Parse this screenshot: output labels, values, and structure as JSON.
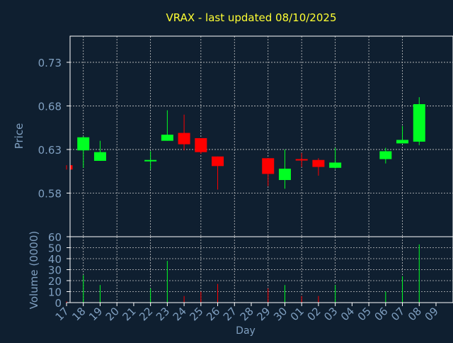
{
  "colors": {
    "background": "#0f1f30",
    "title": "#ffff33",
    "axis_text": "#7f9fc0",
    "up": "#00ff22",
    "down": "#ff0000",
    "grid": "#c8c8c8",
    "frame": "#ffffff"
  },
  "chart_data": [
    {
      "type": "candlestick",
      "title": "VRAX - last updated 08/10/2025",
      "ylabel": "Price",
      "xlabel": "Day",
      "yticks": [
        0.58,
        0.63,
        0.68,
        0.73
      ],
      "ytick_labels": [
        "0.58",
        "0.63",
        "0.68",
        "0.73"
      ],
      "ylim": [
        0.53,
        0.76
      ],
      "grid": true,
      "x_tick_labels": [
        "17",
        "18",
        "19",
        "20",
        "21",
        "22",
        "23",
        "24",
        "25",
        "26",
        "27",
        "28",
        "29",
        "30",
        "01",
        "02",
        "03",
        "04",
        "05",
        "06",
        "07",
        "08",
        "09"
      ],
      "candles": [
        {
          "day": "17",
          "open": 0.612,
          "close": 0.607,
          "high": 0.612,
          "low": 0.607
        },
        {
          "day": "18",
          "open": 0.629,
          "close": 0.644,
          "high": 0.645,
          "low": 0.609
        },
        {
          "day": "19",
          "open": 0.617,
          "close": 0.627,
          "high": 0.64,
          "low": 0.617
        },
        {
          "day": "22",
          "open": 0.617,
          "close": 0.618,
          "high": 0.628,
          "low": 0.607
        },
        {
          "day": "23",
          "open": 0.64,
          "close": 0.647,
          "high": 0.675,
          "low": 0.64
        },
        {
          "day": "24",
          "open": 0.649,
          "close": 0.636,
          "high": 0.67,
          "low": 0.629
        },
        {
          "day": "25",
          "open": 0.643,
          "close": 0.627,
          "high": 0.643,
          "low": 0.625
        },
        {
          "day": "26",
          "open": 0.622,
          "close": 0.611,
          "high": 0.622,
          "low": 0.584
        },
        {
          "day": "29",
          "open": 0.62,
          "close": 0.602,
          "high": 0.62,
          "low": 0.588
        },
        {
          "day": "30",
          "open": 0.595,
          "close": 0.608,
          "high": 0.63,
          "low": 0.585
        },
        {
          "day": "01",
          "open": 0.619,
          "close": 0.618,
          "high": 0.626,
          "low": 0.61
        },
        {
          "day": "02",
          "open": 0.618,
          "close": 0.61,
          "high": 0.62,
          "low": 0.6
        },
        {
          "day": "03",
          "open": 0.609,
          "close": 0.615,
          "high": 0.632,
          "low": 0.608
        },
        {
          "day": "06",
          "open": 0.619,
          "close": 0.628,
          "high": 0.632,
          "low": 0.614
        },
        {
          "day": "07",
          "open": 0.637,
          "close": 0.641,
          "high": 0.657,
          "low": 0.637
        },
        {
          "day": "08",
          "open": 0.639,
          "close": 0.682,
          "high": 0.69,
          "low": 0.635
        }
      ]
    },
    {
      "type": "bar",
      "ylabel": "Volume (0000)",
      "yticks": [
        0,
        10,
        20,
        30,
        40,
        50,
        60
      ],
      "ytick_labels": [
        "0",
        "10",
        "20",
        "30",
        "40",
        "50",
        "60"
      ],
      "ylim": [
        0,
        60
      ],
      "grid": true,
      "bars": [
        {
          "day": "17",
          "value": 1,
          "dir": "down"
        },
        {
          "day": "18",
          "value": 25,
          "dir": "up"
        },
        {
          "day": "19",
          "value": 16,
          "dir": "up"
        },
        {
          "day": "22",
          "value": 13,
          "dir": "up"
        },
        {
          "day": "23",
          "value": 38,
          "dir": "up"
        },
        {
          "day": "24",
          "value": 6,
          "dir": "down"
        },
        {
          "day": "25",
          "value": 10,
          "dir": "down"
        },
        {
          "day": "26",
          "value": 17,
          "dir": "down"
        },
        {
          "day": "29",
          "value": 13,
          "dir": "down"
        },
        {
          "day": "30",
          "value": 16,
          "dir": "up"
        },
        {
          "day": "01",
          "value": 6,
          "dir": "down"
        },
        {
          "day": "02",
          "value": 6,
          "dir": "down"
        },
        {
          "day": "03",
          "value": 16,
          "dir": "up"
        },
        {
          "day": "06",
          "value": 10,
          "dir": "up"
        },
        {
          "day": "07",
          "value": 24,
          "dir": "up"
        },
        {
          "day": "08",
          "value": 53,
          "dir": "up"
        }
      ]
    }
  ]
}
